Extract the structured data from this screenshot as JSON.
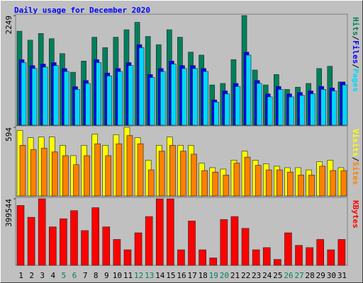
{
  "chart_data": {
    "type": "bar",
    "title": "Daily usage for December 2020",
    "categories": [
      "1",
      "2",
      "3",
      "4",
      "5",
      "6",
      "7",
      "8",
      "9",
      "10",
      "11",
      "12",
      "13",
      "14",
      "15",
      "16",
      "17",
      "18",
      "19",
      "20",
      "21",
      "22",
      "23",
      "24",
      "25",
      "26",
      "27",
      "28",
      "29",
      "30",
      "31"
    ],
    "category_colors": [
      "#000000",
      "#000000",
      "#000000",
      "#000000",
      "#008060",
      "#008060",
      "#000000",
      "#000000",
      "#000000",
      "#000000",
      "#000000",
      "#008060",
      "#008060",
      "#000000",
      "#000000",
      "#000000",
      "#000000",
      "#000000",
      "#008060",
      "#008060",
      "#000000",
      "#000000",
      "#000000",
      "#000000",
      "#000000",
      "#008060",
      "#008060",
      "#000000",
      "#000000",
      "#000000",
      "#000000"
    ],
    "legend_separator": "/",
    "panels": [
      {
        "ylim": [
          0,
          2249
        ],
        "yticks": [
          2249
        ],
        "series": [
          {
            "name": "Hits",
            "color": "#00805c",
            "values": [
              1928,
              1744,
              1882,
              1775,
              1469,
              1086,
              1316,
              1805,
              1591,
              1805,
              1958,
              2111,
              1821,
              1652,
              1958,
              1805,
              1499,
              1438,
              826,
              857,
              1346,
              2249,
              1132,
              826,
              1040,
              734,
              780,
              857,
              1163,
              1209,
              887
            ]
          },
          {
            "name": "Files",
            "color": "#0000ff",
            "values": [
              1345,
              1224,
              1255,
              1285,
              1163,
              790,
              918,
              1345,
              1071,
              1163,
              1285,
              1652,
              1040,
              1163,
              1316,
              1224,
              1224,
              1163,
              520,
              704,
              857,
              1499,
              918,
              643,
              796,
              643,
              673,
              704,
              796,
              765,
              887
            ]
          },
          {
            "name": "Pages",
            "color": "#00d8ff",
            "values": [
              1285,
              1163,
              1193,
              1224,
              1102,
              734,
              857,
              1285,
              1010,
              1102,
              1224,
              1591,
              979,
              1102,
              1255,
              1163,
              1163,
              1102,
              474,
              643,
              796,
              1438,
              857,
              581,
              734,
              581,
              612,
              643,
              734,
              704,
              826
            ]
          }
        ]
      },
      {
        "ylim": [
          0,
          594
        ],
        "yticks": [
          594
        ],
        "series": [
          {
            "name": "Visits",
            "color": "#ffff00",
            "values": [
              568,
              504,
              510,
              510,
              439,
              349,
              439,
              536,
              439,
              530,
              594,
              504,
              310,
              439,
              510,
              439,
              439,
              284,
              245,
              233,
              310,
              388,
              310,
              278,
              258,
              245,
              245,
              226,
              297,
              310,
              245
            ]
          },
          {
            "name": "Sites",
            "color": "#ff8000",
            "values": [
              439,
              401,
              414,
              381,
              349,
              271,
              349,
              452,
              349,
              452,
              523,
              452,
              226,
              388,
              439,
              388,
              362,
              220,
              207,
              181,
              284,
              336,
              265,
              226,
              226,
              207,
              181,
              181,
              258,
              220,
              220
            ]
          }
        ]
      },
      {
        "ylim": [
          0,
          399544
        ],
        "yticks": [
          399544
        ],
        "series": [
          {
            "name": "KBytes",
            "color": "#ff0000",
            "values": [
              359600,
              288600,
              399544,
              230800,
              279700,
              328500,
              208600,
              346300,
              230800,
              155400,
              93200,
              195300,
              293000,
              399000,
              399200,
              93200,
              266400,
              93200,
              44400,
              275200,
              293000,
              222000,
              93200,
              106500,
              35500,
              195300,
              119900,
              106500,
              155400,
              93200,
              155400
            ]
          }
        ]
      }
    ]
  }
}
